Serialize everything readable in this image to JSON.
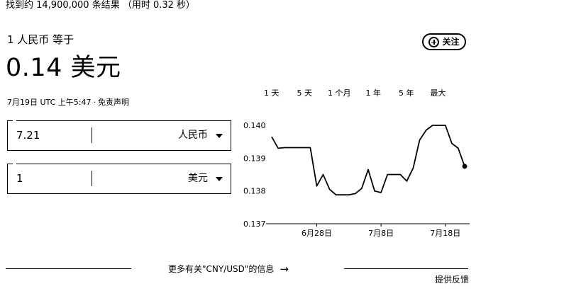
{
  "result_stats": "找到约 14,900,000 条结果 （用时 0.32 秒）",
  "converter": {
    "from_label": "1 人民币 等于",
    "result_amount": "0.14 美元",
    "timestamp": "7月19日 UTC 上午5:47",
    "separator": "·",
    "disclaimer": "免责声明",
    "follow_label": "关注",
    "from_value": "7.21",
    "from_currency": "人民币",
    "to_value": "1",
    "to_currency": "美元"
  },
  "range_tabs": [
    "1 天",
    "5 天",
    "1 个月",
    "1 年",
    "5 年",
    "最大"
  ],
  "more_info": {
    "label": "更多有关\"CNY/USD\"的信息",
    "arrow": "→"
  },
  "feedback": "提供反馈",
  "chart_data": {
    "type": "line",
    "ylim": [
      0.137,
      0.14
    ],
    "y_ticks": [
      "0.140",
      "0.139",
      "0.138",
      "0.137"
    ],
    "x_ticks": [
      {
        "index": 7,
        "label": "6月28日"
      },
      {
        "index": 17,
        "label": "7月8日"
      },
      {
        "index": 27,
        "label": "7月18日"
      }
    ],
    "values": [
      0.13965,
      0.1393,
      0.13932,
      0.13932,
      0.13932,
      0.13932,
      0.13932,
      0.13815,
      0.1385,
      0.13805,
      0.13788,
      0.13788,
      0.13788,
      0.13792,
      0.13808,
      0.13865,
      0.138,
      0.13795,
      0.1385,
      0.1385,
      0.1385,
      0.1383,
      0.1387,
      0.13955,
      0.13985,
      0.14,
      0.14,
      0.14,
      0.13945,
      0.1393,
      0.13875
    ],
    "grid": false,
    "color": "#000000",
    "last_point_marker": true
  }
}
